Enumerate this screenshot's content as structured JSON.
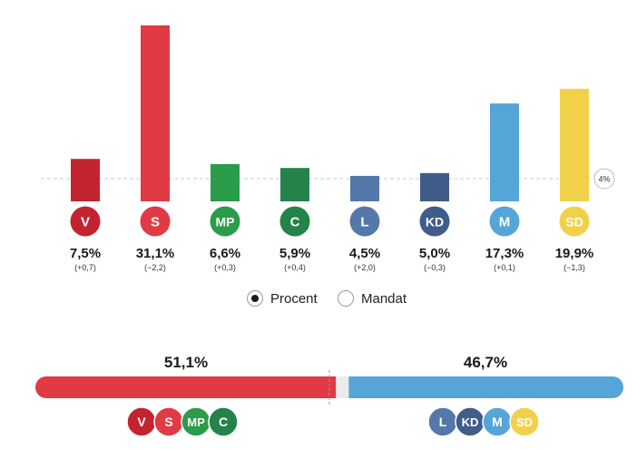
{
  "chart_data": {
    "type": "bar",
    "title": "",
    "categories": [
      "V",
      "S",
      "MP",
      "C",
      "L",
      "KD",
      "M",
      "SD"
    ],
    "values": [
      7.5,
      31.1,
      6.6,
      5.9,
      4.5,
      5.0,
      17.3,
      19.9
    ],
    "value_labels": [
      "7,5%",
      "31,1%",
      "6,6%",
      "5,9%",
      "4,5%",
      "5,0%",
      "17,3%",
      "19,9%"
    ],
    "change_labels": [
      "(+0,7)",
      "(−2,2)",
      "(+0,3)",
      "(+0,4)",
      "(+2,0)",
      "(−0,3)",
      "(+0,1)",
      "(−1,3)"
    ],
    "colors": [
      "#c3232f",
      "#e03a45",
      "#2b9c4a",
      "#23834a",
      "#5478ab",
      "#405d89",
      "#55a5d8",
      "#f2d14a"
    ],
    "threshold": {
      "value": 4,
      "label": "4%"
    },
    "ylim": [
      0,
      31.1
    ]
  },
  "mode_toggle": {
    "options": [
      {
        "label": "Procent",
        "selected": true
      },
      {
        "label": "Mandat",
        "selected": false
      }
    ]
  },
  "blocs": {
    "left": {
      "label": "51,1%",
      "value": 51.1,
      "color": "#e03a45",
      "parties": [
        "V",
        "S",
        "MP",
        "C"
      ]
    },
    "right": {
      "label": "46,7%",
      "value": 46.7,
      "color": "#55a5d8",
      "parties": [
        "L",
        "KD",
        "M",
        "SD"
      ]
    },
    "majority_line": 50
  }
}
